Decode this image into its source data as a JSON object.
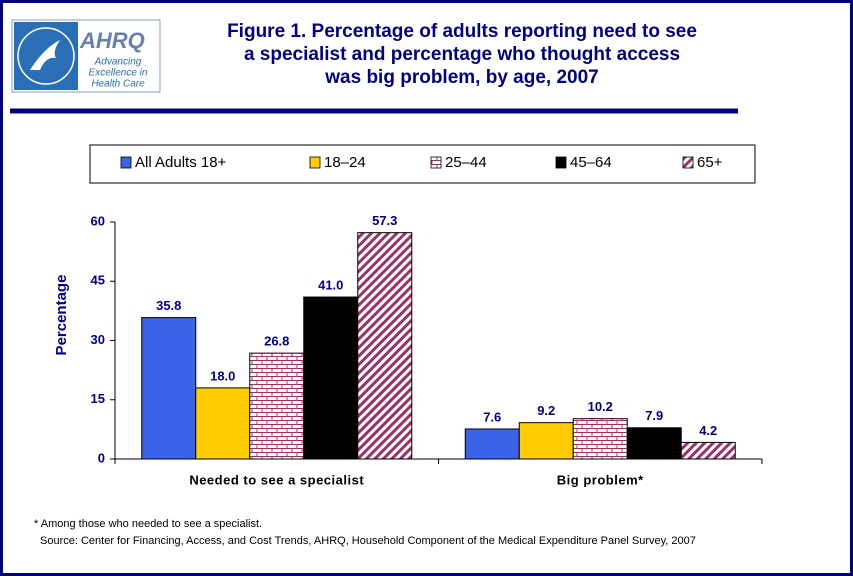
{
  "logo": {
    "name": "AHRQ",
    "tagline": [
      "Advancing",
      "Excellence in",
      "Health Care"
    ]
  },
  "chart_data": {
    "type": "bar",
    "title": "Figure 1. Percentage of adults reporting need to see a specialist and percentage who thought access was big problem, by age, 2007",
    "y_label": "Percentage",
    "categories": [
      "Needed to see a specialist",
      "Big problem*"
    ],
    "series": [
      {
        "name": "All Adults 18+",
        "color": "#3a63e8",
        "pattern": "solid",
        "values": [
          35.8,
          7.6
        ],
        "value_labels": [
          "35.8",
          "7.6"
        ]
      },
      {
        "name": "18–24",
        "color": "#ffcc00",
        "pattern": "solid",
        "values": [
          18.0,
          9.2
        ],
        "value_labels": [
          "18.0",
          "9.2"
        ]
      },
      {
        "name": "25–44",
        "color": "#993366",
        "pattern": "brick",
        "values": [
          26.8,
          10.2
        ],
        "value_labels": [
          "26.8",
          "10.2"
        ]
      },
      {
        "name": "45–64",
        "color": "#000000",
        "pattern": "solid",
        "values": [
          41.0,
          7.9
        ],
        "value_labels": [
          "41.0",
          "7.9"
        ]
      },
      {
        "name": "65+",
        "color": "#993366",
        "pattern": "diagonal",
        "values": [
          57.3,
          4.2
        ],
        "value_labels": [
          "57.3",
          "4.2"
        ]
      }
    ],
    "ylim": [
      0,
      60
    ],
    "yticks": [
      0,
      15,
      30,
      45,
      60
    ],
    "grid": false,
    "legend": "top",
    "notes": [
      "* Among those who needed to see a specialist.",
      "Source: Center for Financing, Access, and Cost Trends, AHRQ, Household Component of the Medical Expenditure Panel Survey, 2007"
    ]
  }
}
